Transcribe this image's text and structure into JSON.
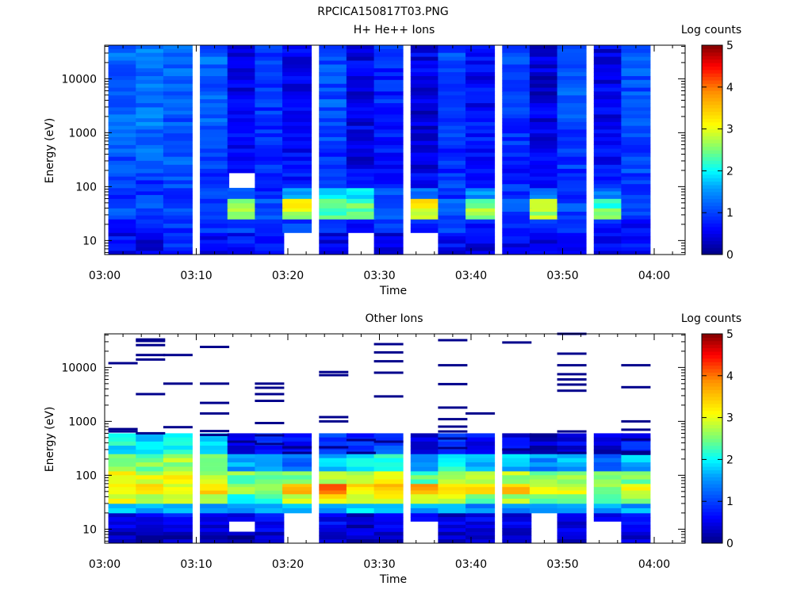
{
  "figure_title": "RPCICA150817T03.PNG",
  "chart_data": [
    {
      "type": "heatmap",
      "title": "H+ He++ Ions",
      "xlabel": "Time",
      "ylabel": "Energy (eV)",
      "x_ticks": [
        "03:00",
        "03:10",
        "03:20",
        "03:30",
        "03:40",
        "03:50",
        "04:00"
      ],
      "y_ticks": [
        "10",
        "100",
        "1000",
        "10000"
      ],
      "y_scale": "log",
      "ylim": [
        5.5,
        42000
      ],
      "colorbar": {
        "label": "Log counts",
        "ticks": [
          "0",
          "1",
          "2",
          "3",
          "4",
          "5"
        ],
        "range": [
          0,
          5
        ]
      },
      "time_bins": [
        "03:02",
        "03:05",
        "03:08",
        "03:12",
        "03:15",
        "03:18",
        "03:21",
        "03:25",
        "03:28",
        "03:31",
        "03:35",
        "03:38",
        "03:41",
        "03:45",
        "03:48",
        "03:51",
        "03:55",
        "03:58"
      ],
      "energy_bands": [
        {
          "range": [
            5.5,
            14
          ],
          "values": [
            0.6,
            0.4,
            0.8,
            0.5,
            0.7,
            0.6,
            null,
            0.5,
            null,
            0.4,
            null,
            0.6,
            0.5,
            0.6,
            0.4,
            0.7,
            0.5,
            0.6
          ]
        },
        {
          "range": [
            14,
            25
          ],
          "values": [
            0.8,
            0.7,
            0.9,
            0.8,
            0.9,
            0.8,
            0.9,
            0.8,
            0.7,
            0.9,
            0.8,
            0.9,
            0.8,
            0.7,
            0.8,
            0.9,
            0.8,
            0.7
          ]
        },
        {
          "range": [
            25,
            40
          ],
          "values": [
            1.0,
            0.9,
            1.0,
            1.1,
            2.6,
            1.0,
            2.8,
            2.4,
            2.5,
            1.0,
            3.0,
            1.0,
            2.6,
            1.0,
            2.7,
            1.0,
            2.6,
            0.9
          ]
        },
        {
          "range": [
            40,
            60
          ],
          "values": [
            0.9,
            1.0,
            0.9,
            1.0,
            2.4,
            1.1,
            3.1,
            2.2,
            2.4,
            1.2,
            3.4,
            1.1,
            2.5,
            1.1,
            2.8,
            1.0,
            2.3,
            1.0
          ]
        },
        {
          "range": [
            60,
            95
          ],
          "values": [
            0.8,
            0.9,
            0.7,
            0.9,
            1.2,
            0.9,
            1.6,
            1.8,
            1.9,
            1.0,
            1.4,
            0.9,
            1.6,
            0.8,
            1.5,
            0.9,
            1.4,
            0.8
          ]
        },
        {
          "range": [
            95,
            180
          ],
          "values": [
            1.0,
            0.9,
            1.0,
            0.9,
            null,
            0.8,
            0.7,
            0.9,
            0.8,
            0.8,
            0.7,
            0.9,
            0.8,
            0.9,
            0.7,
            0.9,
            0.8,
            0.9
          ]
        },
        {
          "range": [
            180,
            600
          ],
          "values": [
            1.1,
            1.2,
            1.1,
            1.0,
            0.6,
            0.8,
            0.6,
            0.9,
            0.5,
            0.7,
            0.4,
            0.8,
            0.7,
            0.8,
            0.5,
            0.9,
            0.6,
            1.0
          ]
        },
        {
          "range": [
            600,
            3000
          ],
          "values": [
            1.2,
            1.3,
            1.1,
            1.2,
            0.6,
            0.9,
            0.5,
            1.0,
            0.5,
            0.8,
            0.4,
            0.9,
            0.7,
            0.9,
            0.5,
            1.0,
            0.5,
            1.1
          ]
        },
        {
          "range": [
            3000,
            42000
          ],
          "values": [
            1.2,
            1.3,
            1.2,
            1.2,
            0.5,
            0.9,
            0.5,
            1.1,
            0.5,
            0.8,
            0.5,
            1.0,
            0.6,
            1.0,
            0.4,
            1.1,
            0.5,
            1.1
          ]
        }
      ]
    },
    {
      "type": "heatmap",
      "title": "Other Ions",
      "xlabel": "Time",
      "ylabel": "Energy (eV)",
      "x_ticks": [
        "03:00",
        "03:10",
        "03:20",
        "03:30",
        "03:40",
        "03:50",
        "04:00"
      ],
      "y_ticks": [
        "10",
        "100",
        "1000",
        "10000"
      ],
      "y_scale": "log",
      "ylim": [
        5.5,
        42000
      ],
      "colorbar": {
        "label": "Log counts",
        "ticks": [
          "0",
          "1",
          "2",
          "3",
          "4",
          "5"
        ],
        "range": [
          0,
          5
        ]
      },
      "time_bins": [
        "03:02",
        "03:05",
        "03:08",
        "03:12",
        "03:15",
        "03:18",
        "03:21",
        "03:25",
        "03:28",
        "03:31",
        "03:35",
        "03:38",
        "03:41",
        "03:45",
        "03:48",
        "03:51",
        "03:55",
        "03:58"
      ],
      "energy_bands": [
        {
          "range": [
            5.5,
            9
          ],
          "values": [
            0.3,
            0.3,
            0.3,
            0.4,
            0.2,
            0.4,
            null,
            0.3,
            0.3,
            0.2,
            null,
            0.3,
            0.4,
            0.3,
            null,
            0.3,
            null,
            0.3
          ]
        },
        {
          "range": [
            9,
            14
          ],
          "values": [
            0.4,
            0.3,
            0.5,
            0.4,
            null,
            0.5,
            null,
            0.6,
            0.3,
            0.6,
            null,
            0.4,
            0.3,
            0.5,
            null,
            0.4,
            null,
            0.6
          ]
        },
        {
          "range": [
            14,
            20
          ],
          "values": [
            0.5,
            0.5,
            0.6,
            0.5,
            0.5,
            0.6,
            null,
            0.6,
            0.4,
            0.5,
            0.5,
            0.4,
            0.5,
            0.4,
            null,
            0.5,
            0.4,
            0.6
          ]
        },
        {
          "range": [
            20,
            30
          ],
          "values": [
            1.8,
            1.6,
            1.7,
            1.6,
            1.7,
            1.5,
            1.6,
            1.7,
            1.8,
            1.6,
            1.7,
            1.6,
            1.4,
            1.5,
            1.6,
            1.7,
            1.5,
            1.6
          ]
        },
        {
          "range": [
            30,
            45
          ],
          "values": [
            3.0,
            2.6,
            2.8,
            2.7,
            2.2,
            2.3,
            2.8,
            3.2,
            2.9,
            3.0,
            2.7,
            2.8,
            2.5,
            2.7,
            2.4,
            2.5,
            2.3,
            2.6
          ]
        },
        {
          "range": [
            45,
            70
          ],
          "values": [
            3.2,
            3.4,
            3.1,
            3.3,
            2.6,
            2.5,
            3.6,
            4.2,
            3.3,
            3.5,
            3.6,
            3.2,
            3.3,
            3.4,
            3.0,
            2.9,
            2.6,
            3.1
          ]
        },
        {
          "range": [
            70,
            120
          ],
          "values": [
            3.0,
            2.9,
            3.2,
            2.7,
            2.5,
            2.3,
            2.6,
            2.8,
            2.9,
            3.0,
            2.4,
            2.6,
            2.9,
            2.7,
            2.6,
            2.7,
            2.4,
            2.5
          ]
        },
        {
          "range": [
            120,
            250
          ],
          "values": [
            2.6,
            2.5,
            2.7,
            2.5,
            1.6,
            1.8,
            1.3,
            1.7,
            2.0,
            2.2,
            1.4,
            2.0,
            1.6,
            1.7,
            1.5,
            1.6,
            1.2,
            1.7
          ]
        },
        {
          "range": [
            250,
            600
          ],
          "values": [
            2.0,
            1.9,
            2.1,
            1.8,
            0.5,
            0.8,
            0.6,
            0.9,
            0.8,
            1.1,
            0.4,
            1.0,
            0.6,
            0.5,
            0.3,
            0.5,
            0.4,
            0.7
          ]
        }
      ],
      "sparse_counts": [
        {
          "time": "03:02",
          "energies": [
            720,
            650,
            12000
          ]
        },
        {
          "time": "03:05",
          "energies": [
            600,
            3200,
            14000,
            17000,
            26000,
            31000,
            33000
          ]
        },
        {
          "time": "03:08",
          "energies": [
            780,
            5000,
            17000
          ]
        },
        {
          "time": "03:12",
          "energies": [
            660,
            560,
            1400,
            2200,
            5000,
            24000
          ]
        },
        {
          "time": "03:15",
          "energies": [
            420
          ]
        },
        {
          "time": "03:18",
          "energies": [
            380,
            550,
            930,
            2400,
            3200,
            4200,
            5000
          ]
        },
        {
          "time": "03:21",
          "energies": [
            260,
            330
          ]
        },
        {
          "time": "03:25",
          "energies": [
            330,
            1000,
            1200,
            7200,
            8200
          ]
        },
        {
          "time": "03:28",
          "energies": [
            260,
            450
          ]
        },
        {
          "time": "03:31",
          "energies": [
            420,
            2900,
            8000,
            13000,
            19000,
            27000
          ]
        },
        {
          "time": "03:38",
          "energies": [
            320,
            480,
            650,
            800,
            1100,
            1800,
            4900,
            11000,
            32000
          ]
        },
        {
          "time": "03:41",
          "energies": [
            1400
          ]
        },
        {
          "time": "03:45",
          "energies": [
            300,
            29000
          ]
        },
        {
          "time": "03:51",
          "energies": [
            260,
            650,
            3700,
            4800,
            6000,
            7500,
            11000,
            18000,
            42000
          ]
        },
        {
          "time": "03:58",
          "energies": [
            250,
            270,
            460,
            700,
            1000,
            4300,
            11000
          ]
        }
      ]
    }
  ]
}
